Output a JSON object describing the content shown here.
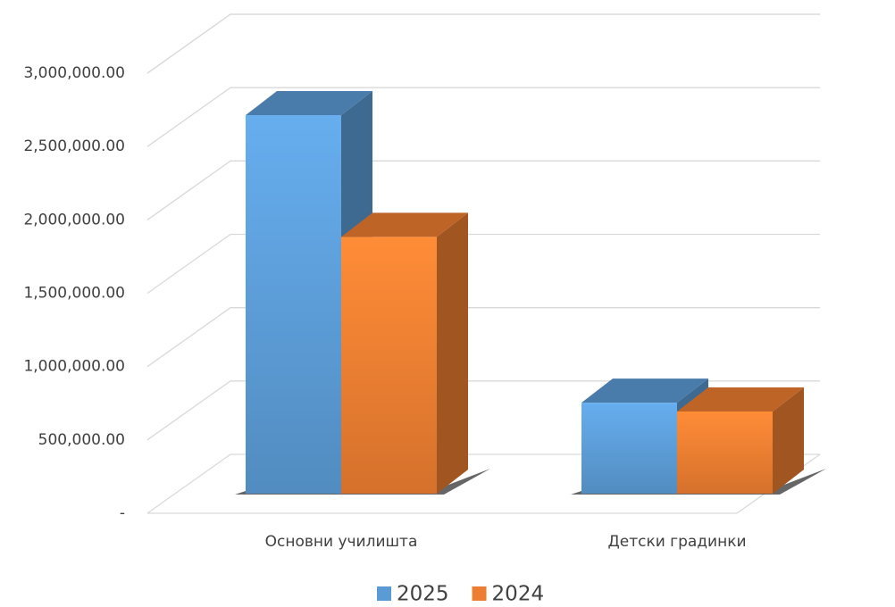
{
  "chart_data": {
    "type": "bar3d",
    "categories": [
      "Основни училишта",
      "Детски градинки"
    ],
    "series": [
      {
        "name": "2025",
        "color": "#5b9bd5",
        "values": [
          2580000,
          620000
        ]
      },
      {
        "name": "2024",
        "color": "#ed7d31",
        "values": [
          1750000,
          560000
        ]
      }
    ],
    "ylim": [
      0,
      3000000
    ],
    "yticks": [
      {
        "value": 0,
        "label": "-"
      },
      {
        "value": 500000,
        "label": "500,000.00"
      },
      {
        "value": 1000000,
        "label": "1,000,000.00"
      },
      {
        "value": 1500000,
        "label": "1,500,000.00"
      },
      {
        "value": 2000000,
        "label": "2,000,000.00"
      },
      {
        "value": 2500000,
        "label": "2,500,000.00"
      },
      {
        "value": 3000000,
        "label": "3,000,000.00"
      }
    ],
    "grid": true,
    "legend": "bottom"
  }
}
